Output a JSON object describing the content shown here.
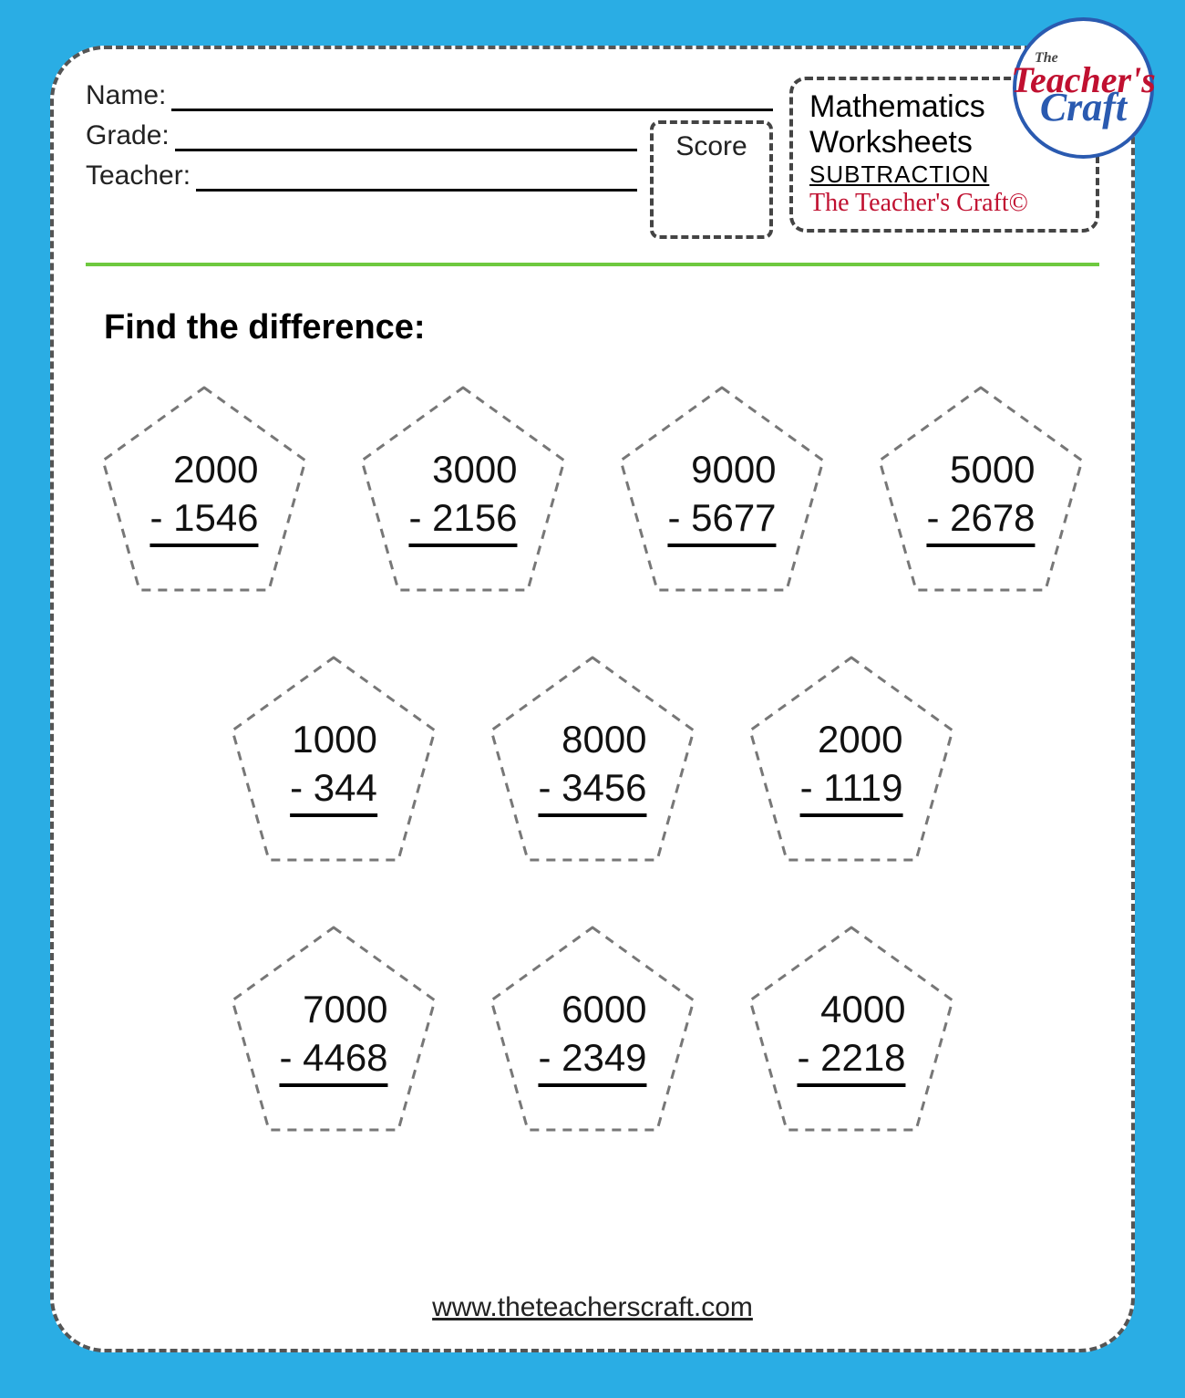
{
  "header": {
    "name_label": "Name:",
    "grade_label": "Grade:",
    "teacher_label": "Teacher:",
    "score_label": "Score"
  },
  "title_box": {
    "line1": "Mathematics",
    "line2": "Worksheets",
    "line3": "SUBTRACTION",
    "line4": "The Teacher's Craft©"
  },
  "logo": {
    "the": "The",
    "line1": "Teacher's",
    "line2": "Craft"
  },
  "instruction": "Find the difference:",
  "problems": {
    "row1": [
      {
        "minuend": "2000",
        "subtrahend": "- 1546"
      },
      {
        "minuend": "3000",
        "subtrahend": "- 2156"
      },
      {
        "minuend": "9000",
        "subtrahend": "- 5677"
      },
      {
        "minuend": "5000",
        "subtrahend": "- 2678"
      }
    ],
    "row2": [
      {
        "minuend": "1000",
        "subtrahend": "-  344"
      },
      {
        "minuend": "8000",
        "subtrahend": "- 3456"
      },
      {
        "minuend": "2000",
        "subtrahend": "- 1119"
      }
    ],
    "row3": [
      {
        "minuend": "7000",
        "subtrahend": "- 4468"
      },
      {
        "minuend": "6000",
        "subtrahend": "- 2349"
      },
      {
        "minuend": "4000",
        "subtrahend": "- 2218"
      }
    ]
  },
  "footer_url": "www.theteacherscraft.com",
  "style": {
    "page_bg": "#2aade4",
    "sheet_bg": "#ffffff",
    "dash_color": "#555555",
    "rule_color": "#6ec93f",
    "brand_red": "#c01030",
    "brand_blue": "#2a5ab0",
    "pentagon_stroke": "#777777",
    "pentagon_dash": "10,8",
    "problem_fontsize": 42,
    "instruction_fontsize": 38
  }
}
